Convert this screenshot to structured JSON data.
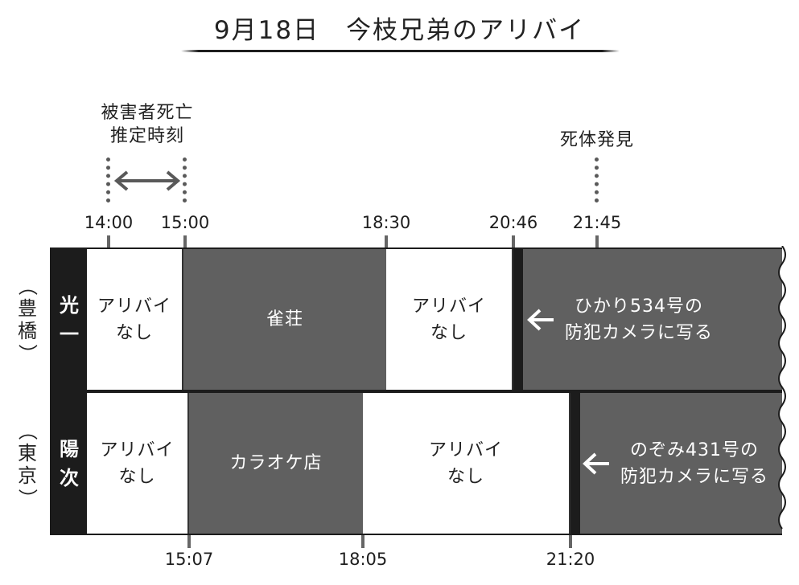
{
  "title": "9月18日　今枝兄弟のアリバイ",
  "notes": {
    "death_time_line1": "被害者死亡",
    "death_time_line2": "推定時刻",
    "discovery": "死体発見"
  },
  "top_times": [
    "14:00",
    "15:00",
    "18:30",
    "20:46",
    "21:45"
  ],
  "bottom_times": [
    "15:07",
    "18:05",
    "21:20"
  ],
  "rows": [
    {
      "city_chars": [
        "（",
        "豊",
        "橋",
        "）"
      ],
      "name_chars": [
        "光",
        "一"
      ],
      "segments": [
        {
          "line1": "アリバイ",
          "line2": "なし"
        },
        {
          "line1": "雀荘",
          "line2": ""
        },
        {
          "line1": "アリバイ",
          "line2": "なし"
        }
      ],
      "camera": {
        "line1": "ひかり534号の",
        "line2": "防犯カメラに写る"
      }
    },
    {
      "city_chars": [
        "（",
        "東",
        "京",
        "）"
      ],
      "name_chars": [
        "陽",
        "次"
      ],
      "segments": [
        {
          "line1": "アリバイ",
          "line2": "なし"
        },
        {
          "line1": "カラオケ店",
          "line2": ""
        },
        {
          "line1": "アリバイ",
          "line2": "なし"
        }
      ],
      "camera": {
        "line1": "のぞみ431号の",
        "line2": "防犯カメラに写る"
      }
    }
  ],
  "colors": {
    "dark": "#1c1c1c",
    "gray_segment": "#606060",
    "white_segment": "#ffffff",
    "dots": "#595959"
  }
}
